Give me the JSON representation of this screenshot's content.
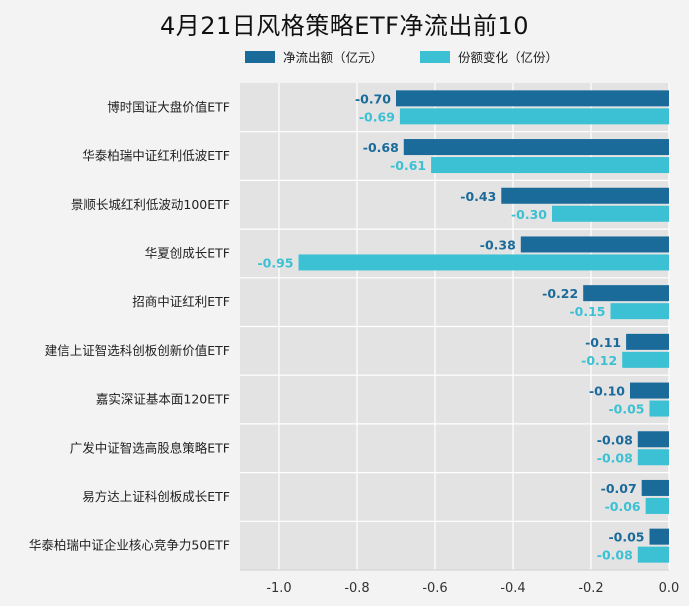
{
  "chart_data": {
    "type": "bar",
    "orientation": "horizontal",
    "title": "4月21日风格策略ETF净流出前10",
    "xlabel": "",
    "ylabel": "",
    "xlim": [
      -1.1,
      0.0
    ],
    "xticks": [
      -1.0,
      -0.8,
      -0.6,
      -0.4,
      -0.2,
      0.0
    ],
    "xtick_labels": [
      "-1.0",
      "-0.8",
      "-0.6",
      "-0.4",
      "-0.2",
      "0.0"
    ],
    "grid": true,
    "legend_position": "top",
    "categories": [
      "博时国证大盘价值ETF",
      "华泰柏瑞中证红利低波ETF",
      "景顺长城红利低波动100ETF",
      "华夏创成长ETF",
      "招商中证红利ETF",
      "建信上证智选科创板创新价值ETF",
      "嘉实深证基本面120ETF",
      "广发中证智选高股息策略ETF",
      "易方达上证科创板成长ETF",
      "华泰柏瑞中证企业核心竞争力50ETF"
    ],
    "series": [
      {
        "name": "净流出额（亿元）",
        "color": "#1a6a9a",
        "values": [
          -0.7,
          -0.68,
          -0.43,
          -0.38,
          -0.22,
          -0.11,
          -0.1,
          -0.08,
          -0.07,
          -0.05
        ],
        "labels": [
          "-0.70",
          "-0.68",
          "-0.43",
          "-0.38",
          "-0.22",
          "-0.11",
          "-0.10",
          "-0.08",
          "-0.07",
          "-0.05"
        ]
      },
      {
        "name": "份额变化（亿份）",
        "color": "#3bc1d3",
        "values": [
          -0.69,
          -0.61,
          -0.3,
          -0.95,
          -0.15,
          -0.12,
          -0.05,
          -0.08,
          -0.06,
          -0.08
        ],
        "labels": [
          "-0.69",
          "-0.61",
          "-0.30",
          "-0.95",
          "-0.15",
          "-0.12",
          "-0.05",
          "-0.08",
          "-0.06",
          "-0.08"
        ]
      }
    ]
  }
}
